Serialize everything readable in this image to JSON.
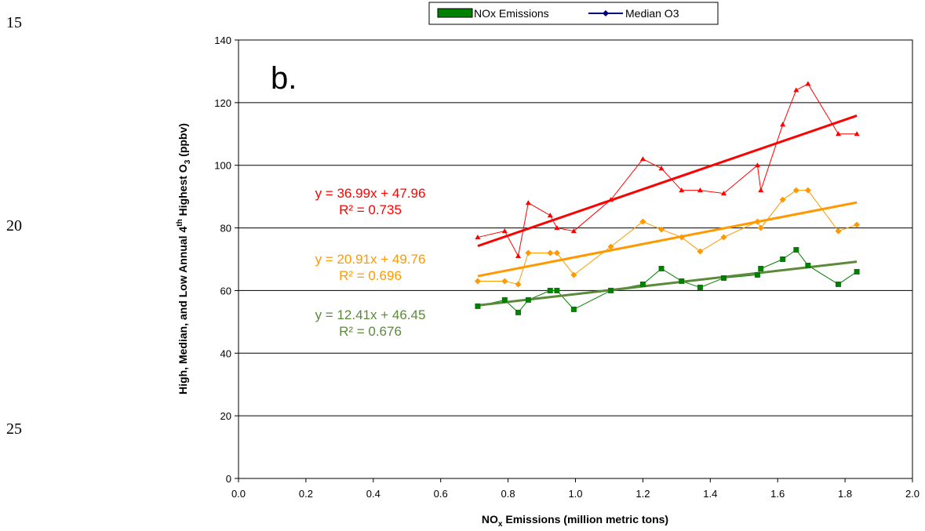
{
  "line_numbers": [
    "15",
    "20",
    "25"
  ],
  "colors": {
    "high": "#ff0000",
    "median": "#ff9900",
    "low": "#008000",
    "low_trend": "#5a8a3a",
    "legend_median": "#000080"
  },
  "chart_data": {
    "type": "scatter",
    "panel_label": "b.",
    "xlabel_main": "NO",
    "xlabel_sub": "x",
    "xlabel_rest": " Emissions (million metric tons)",
    "ylabel_part1": "High, Median, and Low Annual 4",
    "ylabel_sup": "th",
    "ylabel_part2": " Highest O",
    "ylabel_sub": "3",
    "ylabel_part3": " (ppbv)",
    "xlim": [
      0,
      2.0
    ],
    "ylim": [
      0,
      140
    ],
    "x_ticks": [
      "0.0",
      "0.2",
      "0.4",
      "0.6",
      "0.8",
      "1.0",
      "1.2",
      "1.4",
      "1.6",
      "1.8",
      "2.0"
    ],
    "y_ticks": [
      "0",
      "20",
      "40",
      "60",
      "80",
      "100",
      "120",
      "140"
    ],
    "grid": "horizontal",
    "legend_position": "top",
    "legend": [
      "NOx Emissions",
      "Median O3"
    ],
    "x": [
      0.71,
      0.79,
      0.83,
      0.86,
      0.925,
      0.945,
      0.995,
      1.105,
      1.2,
      1.255,
      1.315,
      1.37,
      1.44,
      1.54,
      1.55,
      1.615,
      1.655,
      1.69,
      1.78,
      1.835
    ],
    "series": [
      {
        "values": [
          77,
          79,
          71,
          88,
          84,
          80,
          79,
          89,
          102,
          99,
          92,
          92,
          91,
          100,
          92,
          113,
          124,
          126,
          110,
          110
        ],
        "trend": {
          "slope": 36.99,
          "intercept": 47.96,
          "x_range": [
            0.71,
            1.835
          ]
        },
        "equation": "y = 36.99x + 47.96",
        "r2": "R² = 0.735"
      },
      {
        "values": [
          63,
          63,
          62,
          72,
          72,
          72,
          65,
          74,
          82,
          79.5,
          77,
          72.5,
          77,
          82,
          80,
          89,
          92,
          92,
          79,
          81
        ],
        "trend": {
          "slope": 20.91,
          "intercept": 49.76,
          "x_range": [
            0.71,
            1.835
          ]
        },
        "equation": "y = 20.91x + 49.76",
        "r2": "R² = 0.696"
      },
      {
        "values": [
          55,
          57,
          53,
          57,
          60,
          60,
          54,
          60,
          62,
          67,
          63,
          61,
          64,
          65,
          67,
          70,
          73,
          68,
          62,
          66
        ],
        "trend": {
          "slope": 12.41,
          "intercept": 46.45,
          "x_range": [
            0.71,
            1.835
          ]
        },
        "equation": "y = 12.41x + 46.45",
        "r2": "R² = 0.676"
      }
    ]
  }
}
